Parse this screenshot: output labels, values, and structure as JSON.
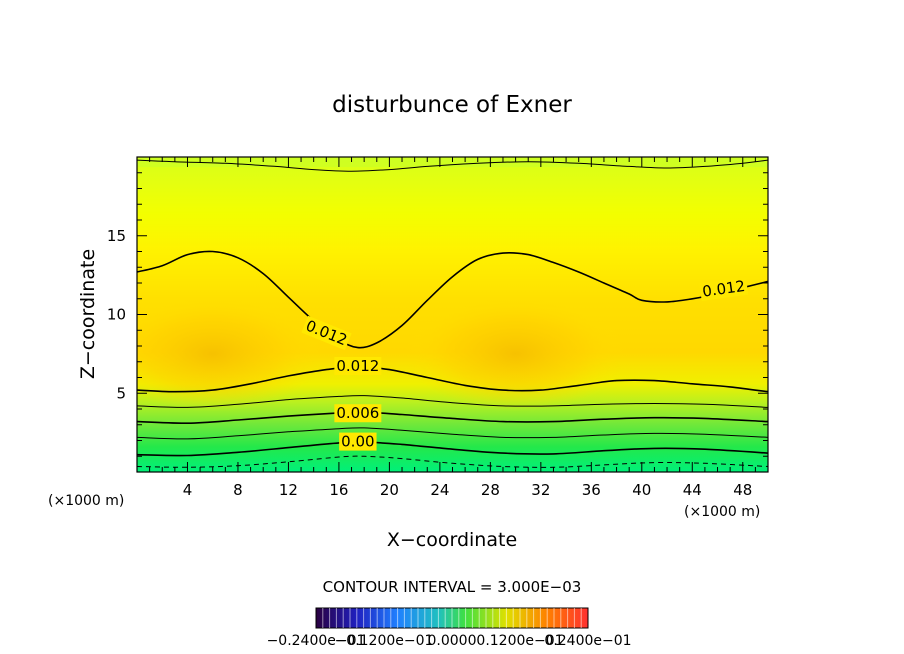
{
  "chart_data": {
    "type": "contour",
    "title": "disturbunce of Exner",
    "xlabel": "X−coordinate",
    "ylabel": "Z−coordinate",
    "x_unit_label": "(×1000 m)",
    "y_unit_label": "(×1000 m)",
    "xlim": [
      0,
      50
    ],
    "ylim": [
      0,
      20
    ],
    "x_ticks": [
      4,
      8,
      12,
      16,
      20,
      24,
      28,
      32,
      36,
      40,
      44,
      48
    ],
    "y_ticks": [
      5,
      10,
      15
    ],
    "contour_interval_text": "CONTOUR INTERVAL = 3.000E−03",
    "contour_labels": [
      {
        "text": "0.012",
        "x": 46.5,
        "z": 11.6,
        "angle": -8
      },
      {
        "text": "0.012",
        "x": 15.0,
        "z": 8.8,
        "angle": 22
      },
      {
        "text": "0.012",
        "x": 17.5,
        "z": 6.7,
        "angle": 0
      },
      {
        "text": "0.006",
        "x": 17.5,
        "z": 3.7,
        "angle": 0
      },
      {
        "text": "0.00",
        "x": 17.5,
        "z": 1.9,
        "angle": 0
      }
    ],
    "contour_lines": [
      {
        "level": 0.012,
        "style": "solid",
        "points": [
          [
            0,
            12.7
          ],
          [
            2,
            13.1
          ],
          [
            4,
            13.8
          ],
          [
            6,
            14.0
          ],
          [
            8,
            13.6
          ],
          [
            10,
            12.6
          ],
          [
            12,
            11.1
          ],
          [
            14,
            9.6
          ],
          [
            16,
            8.4
          ],
          [
            17.5,
            7.9
          ],
          [
            19,
            8.2
          ],
          [
            21,
            9.3
          ],
          [
            23,
            10.9
          ],
          [
            25,
            12.4
          ],
          [
            27,
            13.5
          ],
          [
            29,
            13.9
          ],
          [
            31,
            13.8
          ],
          [
            33,
            13.3
          ],
          [
            35,
            12.7
          ],
          [
            37,
            12.0
          ],
          [
            39,
            11.3
          ],
          [
            40,
            10.9
          ],
          [
            42,
            10.8
          ],
          [
            44,
            11.0
          ],
          [
            46,
            11.3
          ],
          [
            48,
            11.7
          ],
          [
            50,
            12.1
          ]
        ]
      },
      {
        "level": 0.012,
        "style": "solid",
        "points": [
          [
            0,
            5.2
          ],
          [
            3,
            5.1
          ],
          [
            6,
            5.2
          ],
          [
            9,
            5.6
          ],
          [
            12,
            6.1
          ],
          [
            15,
            6.5
          ],
          [
            17.5,
            6.7
          ],
          [
            20,
            6.5
          ],
          [
            23,
            6.0
          ],
          [
            26,
            5.5
          ],
          [
            29,
            5.2
          ],
          [
            32,
            5.2
          ],
          [
            35,
            5.5
          ],
          [
            38,
            5.8
          ],
          [
            41,
            5.8
          ],
          [
            44,
            5.6
          ],
          [
            47,
            5.4
          ],
          [
            50,
            5.1
          ]
        ]
      },
      {
        "level": 0.009,
        "style": "solid",
        "points": [
          [
            0,
            4.2
          ],
          [
            4,
            4.1
          ],
          [
            8,
            4.3
          ],
          [
            12,
            4.6
          ],
          [
            16,
            4.8
          ],
          [
            18,
            4.85
          ],
          [
            21,
            4.7
          ],
          [
            25,
            4.4
          ],
          [
            29,
            4.2
          ],
          [
            33,
            4.2
          ],
          [
            37,
            4.3
          ],
          [
            41,
            4.35
          ],
          [
            45,
            4.3
          ],
          [
            50,
            4.1
          ]
        ]
      },
      {
        "level": 0.006,
        "style": "solid",
        "points": [
          [
            0,
            3.2
          ],
          [
            4,
            3.1
          ],
          [
            8,
            3.3
          ],
          [
            12,
            3.55
          ],
          [
            16,
            3.75
          ],
          [
            18,
            3.8
          ],
          [
            21,
            3.65
          ],
          [
            25,
            3.4
          ],
          [
            29,
            3.2
          ],
          [
            33,
            3.2
          ],
          [
            37,
            3.35
          ],
          [
            41,
            3.45
          ],
          [
            45,
            3.4
          ],
          [
            50,
            3.2
          ]
        ]
      },
      {
        "level": 0.003,
        "style": "solid",
        "points": [
          [
            0,
            2.2
          ],
          [
            4,
            2.1
          ],
          [
            8,
            2.3
          ],
          [
            12,
            2.55
          ],
          [
            16,
            2.75
          ],
          [
            18,
            2.8
          ],
          [
            21,
            2.65
          ],
          [
            25,
            2.4
          ],
          [
            29,
            2.2
          ],
          [
            33,
            2.2
          ],
          [
            37,
            2.35
          ],
          [
            41,
            2.45
          ],
          [
            45,
            2.4
          ],
          [
            50,
            2.2
          ]
        ]
      },
      {
        "level": 0.0,
        "style": "solid",
        "points": [
          [
            0,
            1.1
          ],
          [
            4,
            1.05
          ],
          [
            8,
            1.25
          ],
          [
            12,
            1.55
          ],
          [
            16,
            1.85
          ],
          [
            18,
            1.9
          ],
          [
            21,
            1.75
          ],
          [
            25,
            1.45
          ],
          [
            29,
            1.2
          ],
          [
            33,
            1.15
          ],
          [
            37,
            1.35
          ],
          [
            41,
            1.5
          ],
          [
            45,
            1.45
          ],
          [
            50,
            1.2
          ]
        ]
      },
      {
        "level": -0.003,
        "style": "dashed",
        "points": [
          [
            0,
            0.35
          ],
          [
            4,
            0.3
          ],
          [
            8,
            0.4
          ],
          [
            12,
            0.65
          ],
          [
            16,
            0.95
          ],
          [
            18,
            1.0
          ],
          [
            21,
            0.85
          ],
          [
            25,
            0.55
          ],
          [
            29,
            0.35
          ],
          [
            33,
            0.3
          ],
          [
            37,
            0.45
          ],
          [
            41,
            0.6
          ],
          [
            45,
            0.55
          ],
          [
            50,
            0.35
          ]
        ]
      },
      {
        "level": 0.015,
        "style": "solid",
        "points": [
          [
            0,
            19.8
          ],
          [
            3,
            19.7
          ],
          [
            7,
            19.6
          ],
          [
            11,
            19.4
          ],
          [
            14,
            19.2
          ],
          [
            17,
            19.1
          ],
          [
            20,
            19.2
          ],
          [
            23,
            19.4
          ],
          [
            27,
            19.6
          ],
          [
            31,
            19.7
          ],
          [
            35,
            19.6
          ],
          [
            39,
            19.4
          ],
          [
            42,
            19.3
          ],
          [
            45,
            19.4
          ],
          [
            48,
            19.6
          ],
          [
            50,
            19.8
          ]
        ]
      }
    ],
    "filled_bands": [
      {
        "name": "maximum",
        "x": 6,
        "z": 7.5,
        "color": "#f7c400"
      },
      {
        "name": "maximum",
        "x": 30,
        "z": 7.5,
        "color": "#f7c400"
      }
    ],
    "colorbar": {
      "tick_labels": [
        "−0.2400e−01",
        "−0.1200e−01",
        "0.0000",
        "0.1200e−01",
        "0.2400e−01"
      ]
    },
    "colors": {
      "band_top": "#d6ff1a",
      "band_mid": "#ffe800",
      "band_max": "#f7c400",
      "band_low": "#4ce83a",
      "band_bottom": "#00f07a",
      "line": "#000000"
    }
  }
}
